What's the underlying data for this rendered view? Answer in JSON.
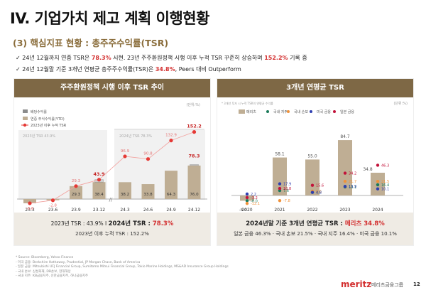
{
  "header": {
    "title": "IV. 기업가치 제고 계획 이행현황",
    "subtitle": "(3) 핵심지표 현황 : 총주주수익률(TSR)",
    "bullets": [
      {
        "pre": "✓ 24년 12월까지 연중 TSR은 ",
        "hl1": "78.3%",
        "mid": " 시현. 23년 주주환원정책 시행 이후 누적 TSR 꾸준히 상승하며 ",
        "hl2": "152.2%",
        "post": " 기록 중"
      },
      {
        "pre": "✓ 24년 12월말 기준 3개년 연평균 총주주수익률(TSR)은 ",
        "hl1": "34.8%",
        "mid": ",  Peers  대비 Outperform",
        "hl2": "",
        "post": ""
      }
    ]
  },
  "left_panel": {
    "title": "주주환원정책 시행 이후 TSR 추이",
    "unit": "(단위:%)",
    "footer": {
      "a": "2023년 TSR : 43.9%  I  ",
      "b": "2024년 TSR : ",
      "c": "78.3%",
      "d": "2023년 이후 누적 TSR : 152.2%"
    }
  },
  "right_panel": {
    "title": "3개년 연평균 TSR",
    "note": "* 3개년 투자 시 누적 TSR의 연평균 수익률",
    "unit": "(단위:%)",
    "footer": {
      "a": "2024년말 기준 3개년 연평균 TSR : ",
      "b": "메리츠 34.8%",
      "c": "일본 금융 46.3% · 국내 손보 21.5% · 국내 지주 16.4% · 미국 금융 10.1%"
    }
  },
  "chart_data": [
    {
      "type": "bar",
      "title": "주주환원정책 시행 이후 TSR 추이",
      "unit": "%",
      "categories": [
        "23.3",
        "23.6",
        "23.9",
        "23.12",
        "24.3",
        "24.6",
        "24.9",
        "24.12"
      ],
      "legend": [
        "배당수익률",
        "연중 주식수익률(YTD)",
        "2023년 이후 누적 TSR"
      ],
      "period_labels": [
        "2023년 TSR 43.9%",
        "2024년 TSR 78.3%"
      ],
      "series": [
        {
          "name": "연중 주식수익률(YTD)",
          "values": [
            -9.6,
            -2.8,
            29.3,
            38.4,
            38.2,
            33.8,
            64.3,
            76.0
          ],
          "color": "#bfae94"
        },
        {
          "name": "배당수익률",
          "values": [
            0,
            0,
            0,
            5.5,
            0,
            0,
            0,
            2.3
          ],
          "color": "#8c8c8c"
        },
        {
          "name": "2023년 이후 누적 TSR",
          "values": [
            -9.6,
            -2.8,
            29.3,
            43.9,
            96.9,
            90.8,
            132.9,
            152.2
          ],
          "color": "#e53935"
        }
      ],
      "annual_totals": [
        {
          "category": "23.12",
          "value": 43.9
        },
        {
          "category": "24.12",
          "value": 78.3
        }
      ],
      "ylim": [
        -15,
        160
      ]
    },
    {
      "type": "bar",
      "title": "3개년 연평균 TSR",
      "unit": "%",
      "categories": [
        "2020",
        "2021",
        "2022",
        "2023",
        "2024"
      ],
      "legend": [
        "메리츠",
        "국내 지주",
        "국내 손보",
        "미국 금융",
        "일본 금융"
      ],
      "series": [
        {
          "name": "메리츠",
          "values": [
            -8.0,
            58.1,
            55.0,
            84.7,
            34.8
          ],
          "color": "#bfae94"
        },
        {
          "name": "국내 지주",
          "values": [
            -8.0,
            7.6,
            4.8,
            13.1,
            16.4
          ],
          "color": "#1b7a5a"
        },
        {
          "name": "국내 손보",
          "values": [
            -12.1,
            -7.8,
            6.6,
            21.7,
            21.5
          ],
          "color": "#f0923a"
        },
        {
          "name": "미국 금융",
          "values": [
            2.2,
            17.9,
            4.8,
            13.9,
            10.1
          ],
          "color": "#2f3fb0"
        },
        {
          "name": "일본 금융",
          "values": [
            -3.2,
            10.8,
            15.6,
            34.2,
            46.3
          ],
          "color": "#c2123a"
        }
      ],
      "ylim": [
        -15,
        95
      ]
    }
  ],
  "footnotes": [
    "* Source: Bloomberg, Yahoo Finance",
    "- 미국 금융: Berkshire Hathaway, Prudential, JP Morgan Chase, Bank of America",
    "- 일본 금융: Mitsubishi UFJ Financial Group, Sumitomo Mitsui Financial Group, Tokio Marine Holdings, MS&AD Insurance Group Holdings",
    "- 국내 손보: 삼성화재, DB손보, 현대해상",
    "- 국내 지주: KB금융지주, 신한금융지주, 하나금융지주"
  ],
  "brand": {
    "logo": "meritz",
    "name": "메리츠금융그룹",
    "page": "12"
  }
}
